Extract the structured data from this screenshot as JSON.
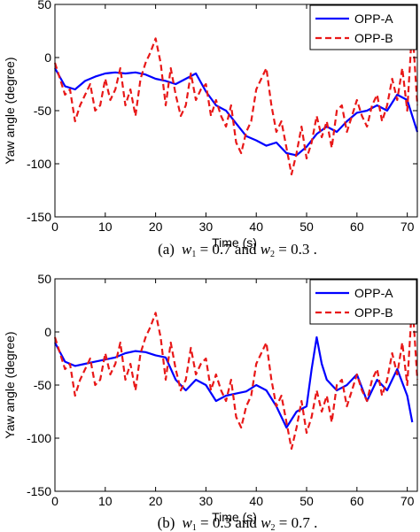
{
  "chart_data": [
    {
      "type": "line",
      "panel": "(a)",
      "caption": {
        "prefix": "(a)",
        "w1": "0.7",
        "w2": "0.3"
      },
      "xlabel": "Time (s)",
      "ylabel": "Yaw angle (degree)",
      "xlim": [
        0,
        72
      ],
      "ylim": [
        -150,
        50
      ],
      "xticks": [
        0,
        10,
        20,
        30,
        40,
        50,
        60,
        70
      ],
      "yticks": [
        50,
        0,
        -50,
        -100,
        -150
      ],
      "grid": false,
      "legend_position": "top-right",
      "series": [
        {
          "name": "OPP-A",
          "style": "solid",
          "color": "#0000ff",
          "x": [
            0,
            2,
            4,
            6,
            8,
            10,
            12,
            14,
            16,
            18,
            20,
            22,
            24,
            26,
            28,
            30,
            32,
            34,
            36,
            38,
            40,
            42,
            44,
            46,
            48,
            50,
            52,
            54,
            56,
            58,
            60,
            62,
            64,
            66,
            68,
            70,
            72
          ],
          "y": [
            -10,
            -27,
            -30,
            -22,
            -18,
            -15,
            -14,
            -15,
            -14,
            -16,
            -20,
            -22,
            -25,
            -20,
            -15,
            -32,
            -45,
            -50,
            -62,
            -74,
            -78,
            -83,
            -80,
            -90,
            -92,
            -84,
            -72,
            -65,
            -70,
            -60,
            -52,
            -50,
            -45,
            -50,
            -35,
            -40,
            -70
          ]
        },
        {
          "name": "OPP-B",
          "style": "dashed",
          "color": "#e81818",
          "x": [
            0,
            1,
            2,
            3,
            4,
            5,
            6,
            7,
            8,
            9,
            10,
            11,
            12,
            13,
            14,
            15,
            16,
            17,
            18,
            19,
            20,
            21,
            22,
            23,
            24,
            25,
            26,
            27,
            28,
            29,
            30,
            31,
            32,
            33,
            34,
            35,
            36,
            37,
            38,
            39,
            40,
            41,
            42,
            43,
            44,
            45,
            46,
            47,
            48,
            49,
            50,
            51,
            52,
            53,
            54,
            55,
            56,
            57,
            58,
            59,
            60,
            61,
            62,
            63,
            64,
            65,
            66,
            67,
            68,
            69,
            70,
            71,
            72
          ],
          "y": [
            -5,
            -20,
            -35,
            -30,
            -60,
            -45,
            -35,
            -25,
            -50,
            -45,
            -20,
            -40,
            -30,
            -10,
            -45,
            -30,
            -55,
            -20,
            -5,
            5,
            18,
            -5,
            -45,
            -10,
            -35,
            -55,
            -45,
            -15,
            -40,
            -30,
            -25,
            -55,
            -40,
            -55,
            -65,
            -45,
            -80,
            -90,
            -70,
            -60,
            -30,
            -20,
            -10,
            -45,
            -70,
            -60,
            -85,
            -110,
            -90,
            -65,
            -95,
            -80,
            -55,
            -75,
            -60,
            -85,
            -50,
            -45,
            -70,
            -55,
            -40,
            -55,
            -65,
            -45,
            -35,
            -60,
            -45,
            -20,
            -40,
            -10,
            -50,
            30,
            -45
          ]
        }
      ]
    },
    {
      "type": "line",
      "panel": "(b)",
      "caption": {
        "prefix": "(b)",
        "w1": "0.3",
        "w2": "0.7"
      },
      "xlabel": "Time (s)",
      "ylabel": "Yaw angle (degree)",
      "xlim": [
        0,
        72
      ],
      "ylim": [
        -150,
        50
      ],
      "xticks": [
        0,
        10,
        20,
        30,
        40,
        50,
        60,
        70
      ],
      "yticks": [
        50,
        0,
        -50,
        -100,
        -150
      ],
      "grid": false,
      "legend_position": "top-right",
      "series": [
        {
          "name": "OPP-A",
          "style": "solid",
          "color": "#0000ff",
          "x": [
            0,
            2,
            4,
            6,
            8,
            10,
            12,
            14,
            16,
            18,
            20,
            22,
            24,
            26,
            28,
            30,
            32,
            34,
            36,
            38,
            40,
            42,
            44,
            46,
            48,
            50,
            51,
            52,
            53,
            54,
            56,
            58,
            60,
            62,
            64,
            66,
            68,
            70,
            71
          ],
          "y": [
            -10,
            -28,
            -32,
            -30,
            -28,
            -26,
            -24,
            -20,
            -18,
            -19,
            -22,
            -24,
            -45,
            -55,
            -45,
            -50,
            -65,
            -60,
            -58,
            -56,
            -50,
            -55,
            -70,
            -90,
            -75,
            -70,
            -35,
            -5,
            -30,
            -45,
            -55,
            -50,
            -40,
            -65,
            -45,
            -55,
            -35,
            -60,
            -85
          ]
        },
        {
          "name": "OPP-B",
          "style": "dashed",
          "color": "#e81818",
          "x": [
            0,
            1,
            2,
            3,
            4,
            5,
            6,
            7,
            8,
            9,
            10,
            11,
            12,
            13,
            14,
            15,
            16,
            17,
            18,
            19,
            20,
            21,
            22,
            23,
            24,
            25,
            26,
            27,
            28,
            29,
            30,
            31,
            32,
            33,
            34,
            35,
            36,
            37,
            38,
            39,
            40,
            41,
            42,
            43,
            44,
            45,
            46,
            47,
            48,
            49,
            50,
            51,
            52,
            53,
            54,
            55,
            56,
            57,
            58,
            59,
            60,
            61,
            62,
            63,
            64,
            65,
            66,
            67,
            68,
            69,
            70,
            71,
            72
          ],
          "y": [
            -5,
            -20,
            -35,
            -30,
            -60,
            -45,
            -35,
            -25,
            -50,
            -45,
            -20,
            -40,
            -30,
            -10,
            -45,
            -30,
            -55,
            -20,
            -5,
            5,
            18,
            -5,
            -45,
            -10,
            -35,
            -55,
            -45,
            -15,
            -40,
            -30,
            -25,
            -55,
            -40,
            -55,
            -65,
            -45,
            -80,
            -90,
            -70,
            -60,
            -30,
            -20,
            -10,
            -45,
            -70,
            -60,
            -85,
            -110,
            -90,
            -65,
            -95,
            -80,
            -55,
            -75,
            -60,
            -85,
            -50,
            -45,
            -70,
            -55,
            -40,
            -55,
            -65,
            -45,
            -35,
            -60,
            -45,
            -20,
            -40,
            -10,
            -50,
            30,
            -45
          ]
        }
      ]
    }
  ]
}
